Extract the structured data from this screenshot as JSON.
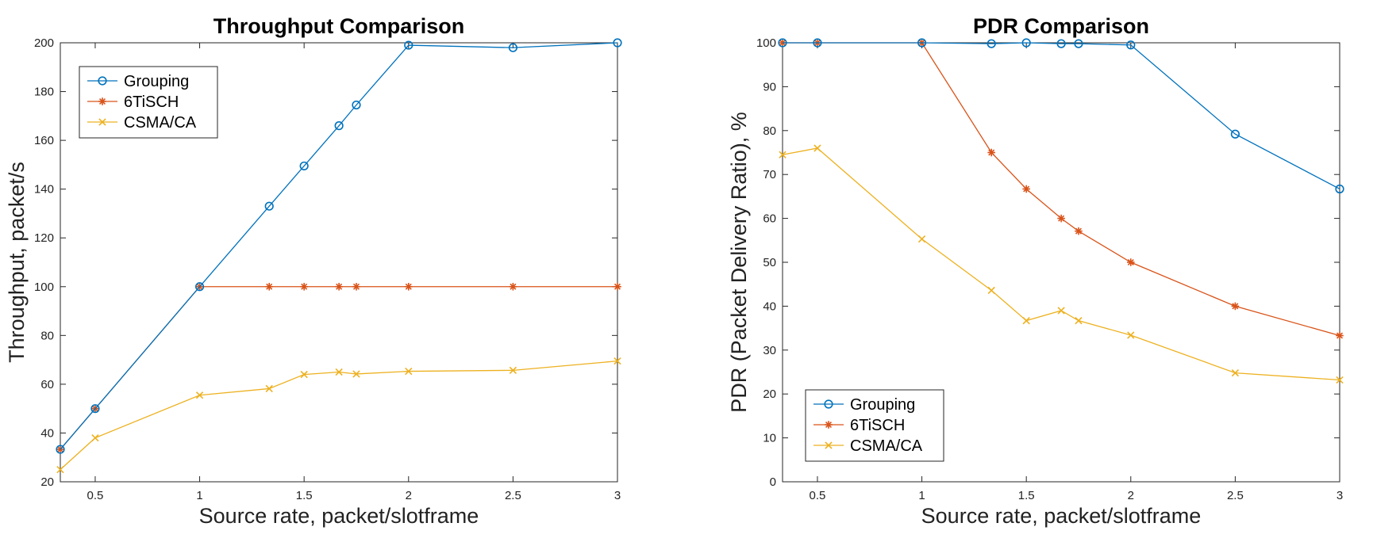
{
  "chart_data": [
    {
      "type": "line",
      "title": "Throughput Comparison",
      "xlabel": "Source rate, packet/slotframe",
      "ylabel": "Throughput, packet/s",
      "xlim": [
        0.333,
        3
      ],
      "ylim": [
        20,
        200
      ],
      "xticks": [
        0.5,
        1,
        1.5,
        2,
        2.5,
        3
      ],
      "xtick_labels": [
        "0.5",
        "1",
        "1.5",
        "2",
        "2.5",
        "3"
      ],
      "yticks": [
        20,
        40,
        60,
        80,
        100,
        120,
        140,
        160,
        180,
        200
      ],
      "ytick_labels": [
        "20",
        "40",
        "60",
        "80",
        "100",
        "120",
        "140",
        "160",
        "180",
        "200"
      ],
      "grid": false,
      "legend_position": "top-left",
      "series": [
        {
          "name": "Grouping",
          "color": "#0072BD",
          "marker": "circle",
          "x": [
            0.333,
            0.5,
            1,
            1.333,
            1.5,
            1.667,
            1.75,
            2,
            2.5,
            3
          ],
          "y": [
            33.3,
            50,
            100,
            133,
            149.5,
            166,
            174.5,
            199,
            198,
            200
          ]
        },
        {
          "name": "6TiSCH",
          "color": "#D95319",
          "marker": "asterisk",
          "x": [
            0.333,
            0.5,
            1,
            1.333,
            1.5,
            1.667,
            1.75,
            2,
            2.5,
            3
          ],
          "y": [
            33.3,
            50,
            100,
            100,
            100,
            100,
            100,
            100,
            100,
            100
          ]
        },
        {
          "name": "CSMA/CA",
          "color": "#EDB120",
          "marker": "x",
          "x": [
            0.333,
            0.5,
            1,
            1.333,
            1.5,
            1.667,
            1.75,
            2,
            2.5,
            3
          ],
          "y": [
            25,
            38,
            55.5,
            58.2,
            64,
            65,
            64.2,
            65.3,
            65.7,
            69.5
          ]
        }
      ]
    },
    {
      "type": "line",
      "title": "PDR Comparison",
      "xlabel": "Source rate, packet/slotframe",
      "ylabel": "PDR (Packet Delivery Ratio), %",
      "xlim": [
        0.333,
        3
      ],
      "ylim": [
        0,
        100
      ],
      "xticks": [
        0.5,
        1,
        1.5,
        2,
        2.5,
        3
      ],
      "xtick_labels": [
        "0.5",
        "1",
        "1.5",
        "2",
        "2.5",
        "3"
      ],
      "yticks": [
        0,
        10,
        20,
        30,
        40,
        50,
        60,
        70,
        80,
        90,
        100
      ],
      "ytick_labels": [
        "0",
        "10",
        "20",
        "30",
        "40",
        "50",
        "60",
        "70",
        "80",
        "90",
        "100"
      ],
      "grid": false,
      "legend_position": "bottom-left",
      "series": [
        {
          "name": "Grouping",
          "color": "#0072BD",
          "marker": "circle",
          "x": [
            0.333,
            0.5,
            1,
            1.333,
            1.5,
            1.667,
            1.75,
            2,
            2.5,
            3
          ],
          "y": [
            100,
            100,
            100,
            99.8,
            100,
            99.8,
            99.8,
            99.5,
            79.2,
            66.7
          ]
        },
        {
          "name": "6TiSCH",
          "color": "#D95319",
          "marker": "asterisk",
          "x": [
            0.333,
            0.5,
            1,
            1.333,
            1.5,
            1.667,
            1.75,
            2,
            2.5,
            3
          ],
          "y": [
            100,
            100,
            100,
            75,
            66.7,
            60,
            57.1,
            50,
            40,
            33.3
          ]
        },
        {
          "name": "CSMA/CA",
          "color": "#EDB120",
          "marker": "x",
          "x": [
            0.333,
            0.5,
            1,
            1.333,
            1.5,
            1.667,
            1.75,
            2,
            2.5,
            3
          ],
          "y": [
            74.5,
            76,
            55.3,
            43.6,
            36.7,
            39,
            36.7,
            33.4,
            24.8,
            23.2
          ]
        }
      ]
    }
  ]
}
